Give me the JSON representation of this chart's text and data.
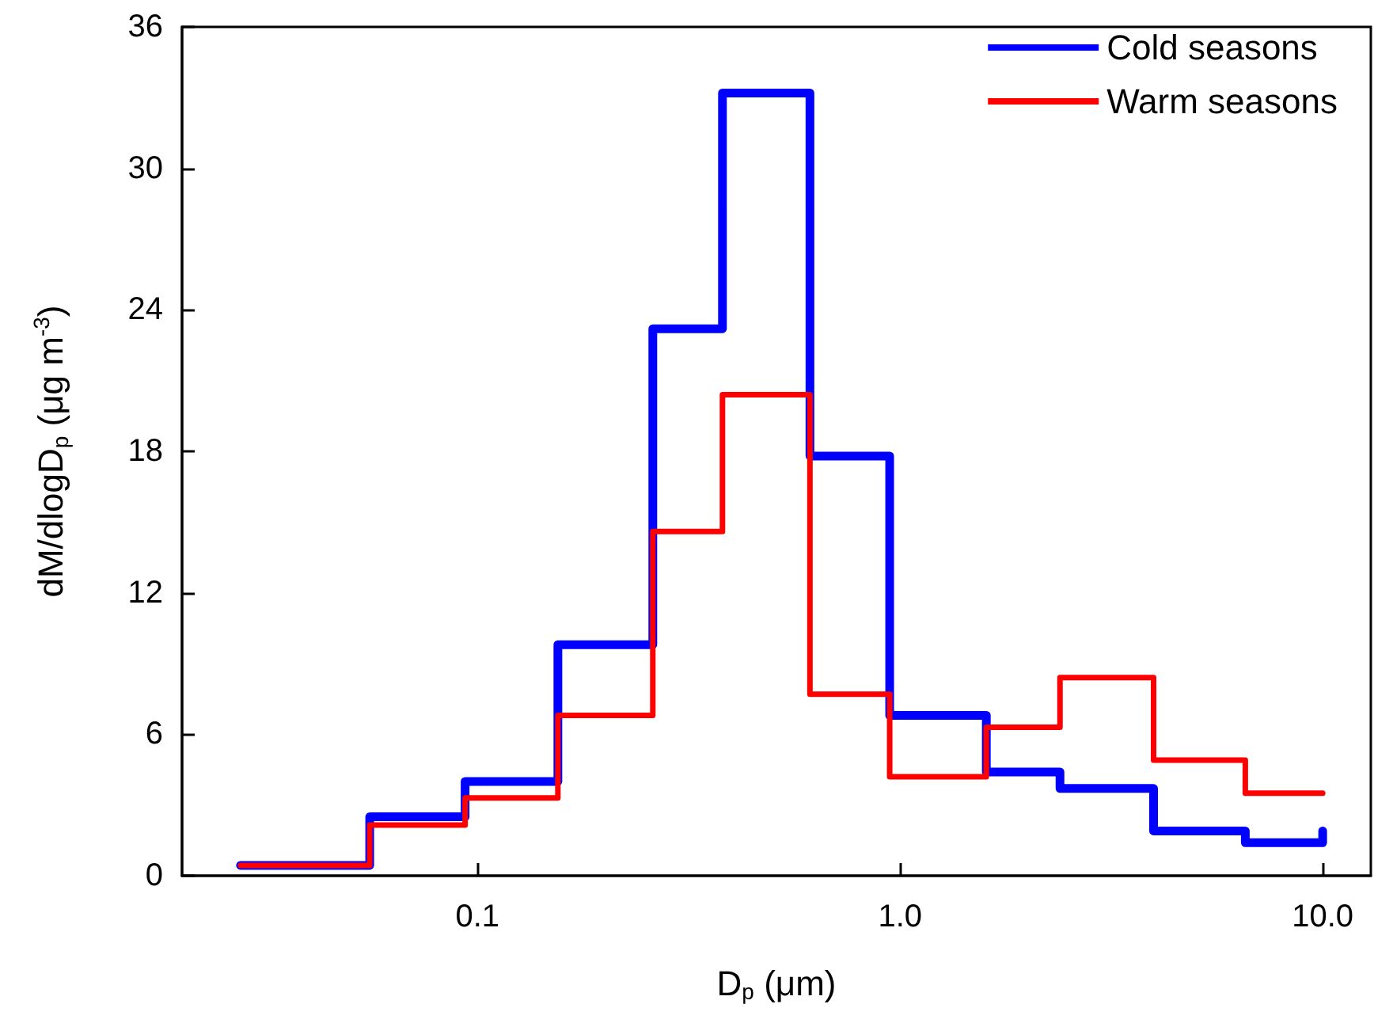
{
  "chart_data": {
    "type": "step",
    "xlabel": "D$_{p}$ (μm)",
    "ylabel": "dM/dlogD$_{p}$ (μg m$^{-3}$)",
    "x": [
      0.0275,
      0.0556,
      0.0935,
      0.155,
      0.26,
      0.38,
      0.612,
      0.945,
      1.6,
      2.39,
      3.98,
      6.56,
      10
    ],
    "series": [
      {
        "name": "Cold seasons",
        "color": "#0000ff",
        "values": [
          0.44,
          2.5,
          4.0,
          9.8,
          23.2,
          33.2,
          17.8,
          6.8,
          4.4,
          3.7,
          1.9,
          1.4,
          1.9
        ]
      },
      {
        "name": "Warm seasons",
        "color": "#ff0000",
        "values": [
          0.44,
          2.15,
          3.3,
          6.8,
          14.6,
          20.4,
          7.7,
          4.2,
          6.3,
          8.4,
          4.9,
          3.5,
          3.5
        ]
      }
    ],
    "log": "x",
    "xlim": [
      0.02,
      13
    ],
    "xticks": [
      {
        "value": 0.1,
        "label": "0.1"
      },
      {
        "value": 1,
        "label": "1.0"
      },
      {
        "value": 10,
        "label": "10.0"
      }
    ],
    "ylim": [
      0,
      36
    ],
    "yticks": [
      0,
      6,
      12,
      18,
      24,
      30,
      36
    ],
    "grid": false,
    "legend": "top right",
    "marker": "none",
    "line_style": "solid"
  }
}
